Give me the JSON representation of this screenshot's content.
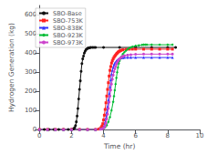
{
  "chart_data": {
    "type": "line",
    "xlabel": "Time (hr)",
    "ylabel": "Hydrogen Generation (kg)",
    "xlim": [
      0,
      10
    ],
    "ylim": [
      0,
      650
    ],
    "xticks": [
      0,
      2,
      4,
      6,
      8,
      10
    ],
    "yticks": [
      0,
      100,
      200,
      300,
      400,
      500,
      600
    ],
    "grid": false,
    "legend": "upper left",
    "series": [
      {
        "name": "SBO-Base",
        "color": "#111111",
        "marker": "circle",
        "x": [
          0,
          0.3,
          0.6,
          0.9,
          1.2,
          1.5,
          1.8,
          2.0,
          2.1,
          2.15,
          2.2,
          2.25,
          2.3,
          2.35,
          2.4,
          2.45,
          2.5,
          2.55,
          2.6,
          2.65,
          2.7,
          2.75,
          2.8,
          2.85,
          2.9,
          2.95,
          3.0,
          3.05,
          3.1,
          3.15,
          3.2,
          3.3,
          3.4,
          3.5,
          4.0,
          5.0,
          6.0,
          7.0,
          8.0,
          8.5
        ],
        "values": [
          0,
          0,
          0,
          0,
          0,
          0,
          0,
          0,
          2,
          5,
          10,
          20,
          40,
          70,
          110,
          160,
          210,
          255,
          305,
          345,
          370,
          385,
          400,
          410,
          418,
          422,
          425,
          427,
          428,
          429,
          430,
          430,
          430,
          430,
          430,
          430,
          430,
          430,
          430,
          430
        ]
      },
      {
        "name": "SBO-753K",
        "color": "#ff2222",
        "marker": "square",
        "x": [
          0,
          0.5,
          1.0,
          1.5,
          2.0,
          2.5,
          3.0,
          3.5,
          3.7,
          3.8,
          3.85,
          3.9,
          3.95,
          4.0,
          4.05,
          4.1,
          4.15,
          4.2,
          4.25,
          4.3,
          4.35,
          4.4,
          4.45,
          4.5,
          4.55,
          4.6,
          4.65,
          4.7,
          4.75,
          4.8,
          4.85,
          4.9,
          4.95,
          5.0,
          5.05,
          5.1,
          5.2,
          5.4,
          5.6,
          5.8,
          6.0,
          6.5,
          7.0,
          7.5,
          8.0,
          8.3
        ],
        "values": [
          0,
          0,
          0,
          0,
          0,
          0,
          0,
          0,
          2,
          5,
          10,
          18,
          30,
          50,
          75,
          105,
          140,
          175,
          210,
          245,
          280,
          310,
          330,
          348,
          360,
          370,
          378,
          384,
          390,
          396,
          400,
          405,
          408,
          411,
          413,
          415,
          418,
          420,
          421,
          421,
          421,
          421,
          421,
          421,
          421,
          421
        ]
      },
      {
        "name": "SBO-838K",
        "color": "#3333ff",
        "marker": "triangle",
        "x": [
          0,
          0.5,
          1.0,
          1.5,
          2.0,
          2.5,
          3.0,
          3.5,
          3.8,
          3.9,
          4.0,
          4.05,
          4.1,
          4.15,
          4.2,
          4.25,
          4.3,
          4.35,
          4.4,
          4.45,
          4.5,
          4.55,
          4.6,
          4.65,
          4.7,
          4.8,
          4.9,
          5.0,
          5.1,
          5.2,
          5.3,
          5.5,
          5.7,
          6.0,
          6.5,
          7.0,
          7.5,
          8.0,
          8.3
        ],
        "values": [
          0,
          0,
          0,
          0,
          0,
          0,
          0,
          0,
          2,
          5,
          12,
          22,
          38,
          60,
          88,
          120,
          155,
          190,
          225,
          260,
          290,
          310,
          325,
          338,
          348,
          360,
          368,
          373,
          375,
          376,
          377,
          377,
          377,
          377,
          377,
          377,
          377,
          377,
          377
        ]
      },
      {
        "name": "SBO-923K",
        "color": "#00bb33",
        "marker": "diamond",
        "x": [
          0,
          0.5,
          1.0,
          1.5,
          2.0,
          2.5,
          3.0,
          3.5,
          3.8,
          3.9,
          4.0,
          4.1,
          4.2,
          4.3,
          4.4,
          4.5,
          4.6,
          4.65,
          4.7,
          4.75,
          4.8,
          4.85,
          4.9,
          4.95,
          5.0,
          5.05,
          5.1,
          5.2,
          5.3,
          5.4,
          5.5,
          5.6,
          5.7,
          5.8,
          6.0,
          6.2,
          6.4,
          6.5,
          6.6,
          6.7,
          7.0,
          7.5,
          8.0,
          8.3
        ],
        "values": [
          0,
          0,
          0,
          0,
          0,
          0,
          0,
          0,
          1,
          3,
          6,
          12,
          22,
          40,
          65,
          100,
          145,
          175,
          205,
          238,
          270,
          300,
          325,
          345,
          360,
          372,
          380,
          395,
          405,
          413,
          420,
          426,
          430,
          434,
          438,
          441,
          443,
          444,
          444,
          444,
          444,
          444,
          444,
          444
        ]
      },
      {
        "name": "SBO-973K",
        "color": "#cc44cc",
        "marker": "circle",
        "x": [
          0,
          0.5,
          1.0,
          1.5,
          2.0,
          2.5,
          3.0,
          3.5,
          3.8,
          3.9,
          4.0,
          4.05,
          4.1,
          4.15,
          4.2,
          4.25,
          4.3,
          4.35,
          4.4,
          4.45,
          4.5,
          4.55,
          4.6,
          4.65,
          4.7,
          4.75,
          4.8,
          4.85,
          4.9,
          4.95,
          5.0,
          5.1,
          5.2,
          5.3,
          5.5,
          5.7,
          6.0,
          6.5,
          7.0,
          7.5,
          8.0,
          8.3
        ],
        "values": [
          0,
          0,
          0,
          0,
          0,
          0,
          0,
          0,
          1,
          3,
          7,
          12,
          20,
          34,
          55,
          80,
          110,
          143,
          175,
          207,
          238,
          263,
          285,
          303,
          318,
          330,
          342,
          351,
          359,
          365,
          370,
          378,
          383,
          387,
          390,
          392,
          394,
          395,
          395,
          395,
          395,
          395
        ]
      }
    ]
  }
}
